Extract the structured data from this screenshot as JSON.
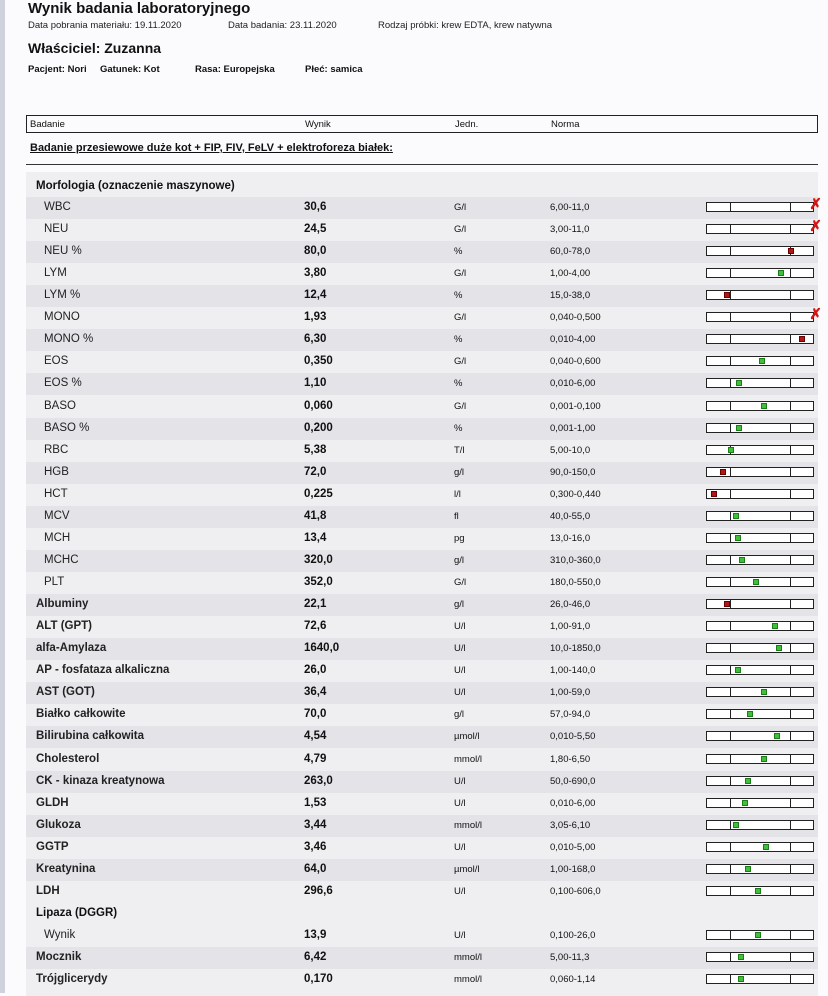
{
  "header": {
    "title": "Wynik badania laboratoryjnego",
    "meta": [
      "Data pobrania materiału: 19.11.2020",
      "Data badania: 23.11.2020",
      "Rodzaj próbki: krew EDTA, krew natywna"
    ],
    "owner": "Właściciel:  Zuzanna",
    "patient": [
      "Pacjent: Nori",
      "Gatunek: Kot",
      "Rasa: Europejska",
      "Płeć: samica"
    ]
  },
  "columns": {
    "test": "Badanie",
    "result": "Wynik",
    "unit": "Jedn.",
    "norm": "Norma"
  },
  "panel_title": "Badanie przesiewowe duże kot + FIP, FIV, FeLV + elektroforeza białek:",
  "section_morph": "Morfologia (oznaczenie maszynowe)",
  "section_lipase": "Lipaza (DGGR)",
  "rows": [
    {
      "name": "WBC",
      "value": "30,6",
      "unit": "G/l",
      "norm": "6,00-11,0",
      "level": 1.0,
      "flag": "over"
    },
    {
      "name": "NEU",
      "value": "24,5",
      "unit": "G/l",
      "norm": "3,00-11,0",
      "level": 1.0,
      "flag": "over"
    },
    {
      "name": "NEU %",
      "value": "80,0",
      "unit": "%",
      "norm": "60,0-78,0",
      "level": 0.79,
      "flag": "high"
    },
    {
      "name": "LYM",
      "value": "3,80",
      "unit": "G/l",
      "norm": "1,00-4,00",
      "level": 0.7,
      "flag": "ok"
    },
    {
      "name": "LYM %",
      "value": "12,4",
      "unit": "%",
      "norm": "15,0-38,0",
      "level": 0.19,
      "flag": "low"
    },
    {
      "name": "MONO",
      "value": "1,93",
      "unit": "G/l",
      "norm": "0,040-0,500",
      "level": 1.0,
      "flag": "over"
    },
    {
      "name": "MONO %",
      "value": "6,30",
      "unit": "%",
      "norm": "0,010-4,00",
      "level": 0.9,
      "flag": "high"
    },
    {
      "name": "EOS",
      "value": "0,350",
      "unit": "G/l",
      "norm": "0,040-0,600",
      "level": 0.52,
      "flag": "ok"
    },
    {
      "name": "EOS %",
      "value": "1,10",
      "unit": "%",
      "norm": "0,010-6,00",
      "level": 0.3,
      "flag": "ok"
    },
    {
      "name": "BASO",
      "value": "0,060",
      "unit": "G/l",
      "norm": "0,001-0,100",
      "level": 0.54,
      "flag": "ok"
    },
    {
      "name": "BASO %",
      "value": "0,200",
      "unit": "%",
      "norm": "0,001-1,00",
      "level": 0.3,
      "flag": "ok"
    },
    {
      "name": "RBC",
      "value": "5,38",
      "unit": "T/l",
      "norm": "5,00-10,0",
      "level": 0.23,
      "flag": "ok"
    },
    {
      "name": "HGB",
      "value": "72,0",
      "unit": "g/l",
      "norm": "90,0-150,0",
      "level": 0.15,
      "flag": "low"
    },
    {
      "name": "HCT",
      "value": "0,225",
      "unit": "l/l",
      "norm": "0,300-0,440",
      "level": 0.07,
      "flag": "low"
    },
    {
      "name": "MCV",
      "value": "41,8",
      "unit": "fl",
      "norm": "40,0-55,0",
      "level": 0.27,
      "flag": "ok"
    },
    {
      "name": "MCH",
      "value": "13,4",
      "unit": "pg",
      "norm": "13,0-16,0",
      "level": 0.29,
      "flag": "ok"
    },
    {
      "name": "MCHC",
      "value": "320,0",
      "unit": "g/l",
      "norm": "310,0-360,0",
      "level": 0.33,
      "flag": "ok"
    },
    {
      "name": "PLT",
      "value": "352,0",
      "unit": "G/l",
      "norm": "180,0-550,0",
      "level": 0.46,
      "flag": "ok"
    },
    {
      "name": "Albuminy",
      "value": "22,1",
      "unit": "g/l",
      "norm": "26,0-46,0",
      "level": 0.19,
      "flag": "low"
    },
    {
      "name": "ALT (GPT)",
      "value": "72,6",
      "unit": "U/l",
      "norm": "1,00-91,0",
      "level": 0.64,
      "flag": "ok"
    },
    {
      "name": "alfa-Amylaza",
      "value": "1640,0",
      "unit": "U/l",
      "norm": "10,0-1850,0",
      "level": 0.68,
      "flag": "ok"
    },
    {
      "name": "AP - fosfataza alkaliczna",
      "value": "26,0",
      "unit": "U/l",
      "norm": "1,00-140,0",
      "level": 0.29,
      "flag": "ok"
    },
    {
      "name": "AST (GOT)",
      "value": "36,4",
      "unit": "U/l",
      "norm": "1,00-59,0",
      "level": 0.54,
      "flag": "ok"
    },
    {
      "name": "Białko całkowite",
      "value": "70,0",
      "unit": "g/l",
      "norm": "57,0-94,0",
      "level": 0.41,
      "flag": "ok"
    },
    {
      "name": "Bilirubina całkowita",
      "value": "4,54",
      "unit": "µmol/l",
      "norm": "0,010-5,50",
      "level": 0.66,
      "flag": "ok"
    },
    {
      "name": "Cholesterol",
      "value": "4,79",
      "unit": "mmol/l",
      "norm": "1,80-6,50",
      "level": 0.54,
      "flag": "ok"
    },
    {
      "name": "CK - kinaza kreatynowa",
      "value": "263,0",
      "unit": "U/l",
      "norm": "50,0-690,0",
      "level": 0.39,
      "flag": "ok"
    },
    {
      "name": "GLDH",
      "value": "1,53",
      "unit": "U/l",
      "norm": "0,010-6,00",
      "level": 0.36,
      "flag": "ok"
    },
    {
      "name": "Glukoza",
      "value": "3,44",
      "unit": "mmol/l",
      "norm": "3,05-6,10",
      "level": 0.27,
      "flag": "ok"
    },
    {
      "name": "GGTP",
      "value": "3,46",
      "unit": "U/l",
      "norm": "0,010-5,00",
      "level": 0.56,
      "flag": "ok"
    },
    {
      "name": "Kreatynina",
      "value": "64,0",
      "unit": "µmol/l",
      "norm": "1,00-168,0",
      "level": 0.39,
      "flag": "ok"
    },
    {
      "name": "LDH",
      "value": "296,6",
      "unit": "U/l",
      "norm": "0,100-606,0",
      "level": 0.48,
      "flag": "ok"
    },
    {
      "name": "Wynik",
      "value": "13,9",
      "unit": "U/l",
      "norm": "0,100-26,0",
      "level": 0.48,
      "flag": "ok"
    },
    {
      "name": "Mocznik",
      "value": "6,42",
      "unit": "mmol/l",
      "norm": "5,00-11,3",
      "level": 0.32,
      "flag": "ok"
    },
    {
      "name": "Trójglicerydy",
      "value": "0,170",
      "unit": "mmol/l",
      "norm": "0,060-1,14",
      "level": 0.32,
      "flag": "ok"
    }
  ]
}
